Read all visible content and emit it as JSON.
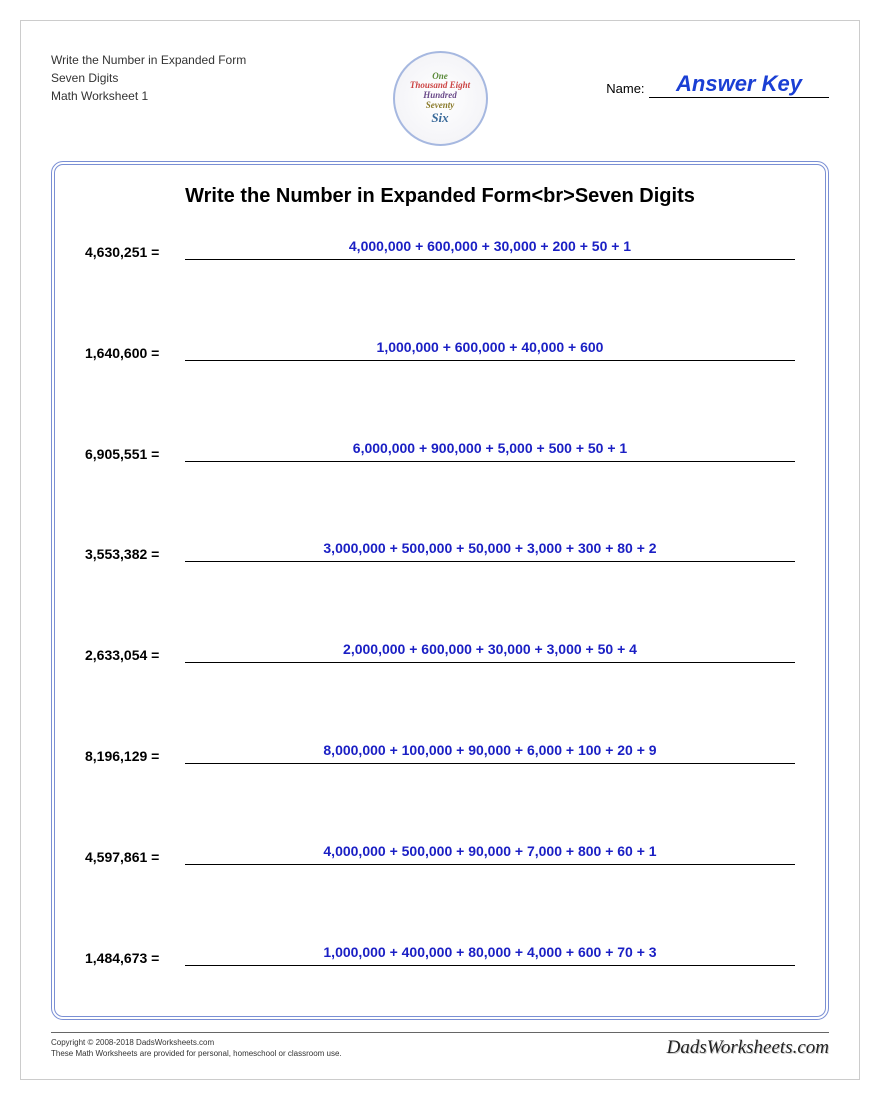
{
  "header": {
    "left_line1": "Write the Number in Expanded Form",
    "left_line2": "Seven Digits",
    "left_line3": "Math Worksheet 1",
    "name_label": "Name:",
    "answer_key": "Answer Key",
    "logo_lines": [
      "One",
      "Thousand",
      "Eight",
      "Hundred",
      "Seventy",
      "Six"
    ]
  },
  "title": "Write the Number in Expanded Form<br>Seven Digits",
  "problems": [
    {
      "number": "4,630,251 =",
      "answer": "4,000,000 + 600,000 + 30,000 + 200 + 50 + 1"
    },
    {
      "number": "1,640,600 =",
      "answer": "1,000,000 + 600,000 + 40,000 + 600"
    },
    {
      "number": "6,905,551 =",
      "answer": "6,000,000 + 900,000 + 5,000 + 500 + 50 + 1"
    },
    {
      "number": "3,553,382 =",
      "answer": "3,000,000 + 500,000 + 50,000 + 3,000 + 300 + 80 + 2"
    },
    {
      "number": "2,633,054 =",
      "answer": "2,000,000 + 600,000 + 30,000 + 3,000 + 50 + 4"
    },
    {
      "number": "8,196,129 =",
      "answer": "8,000,000 + 100,000 + 90,000 + 6,000 + 100 + 20 + 9"
    },
    {
      "number": "4,597,861 =",
      "answer": "4,000,000 + 500,000 + 90,000 + 7,000 + 800 + 60 + 1"
    },
    {
      "number": "1,484,673 =",
      "answer": "1,000,000 + 400,000 + 80,000 + 4,000 + 600 + 70 + 3"
    }
  ],
  "footer": {
    "copyright": "Copyright © 2008-2018 DadsWorksheets.com",
    "disclaimer": "These Math Worksheets are provided for personal, homeschool or classroom use.",
    "brand": "DadsWorksheets.com"
  },
  "colors": {
    "answer_text": "#1a1fc4",
    "answer_key": "#1a3fd4",
    "frame_border": "#7a8fd4",
    "text": "#000000",
    "rule": "#000000"
  },
  "fonts": {
    "body": "Arial",
    "title_size_pt": 20,
    "body_size_pt": 14,
    "small_size_pt": 12,
    "footer_size_pt": 8
  }
}
